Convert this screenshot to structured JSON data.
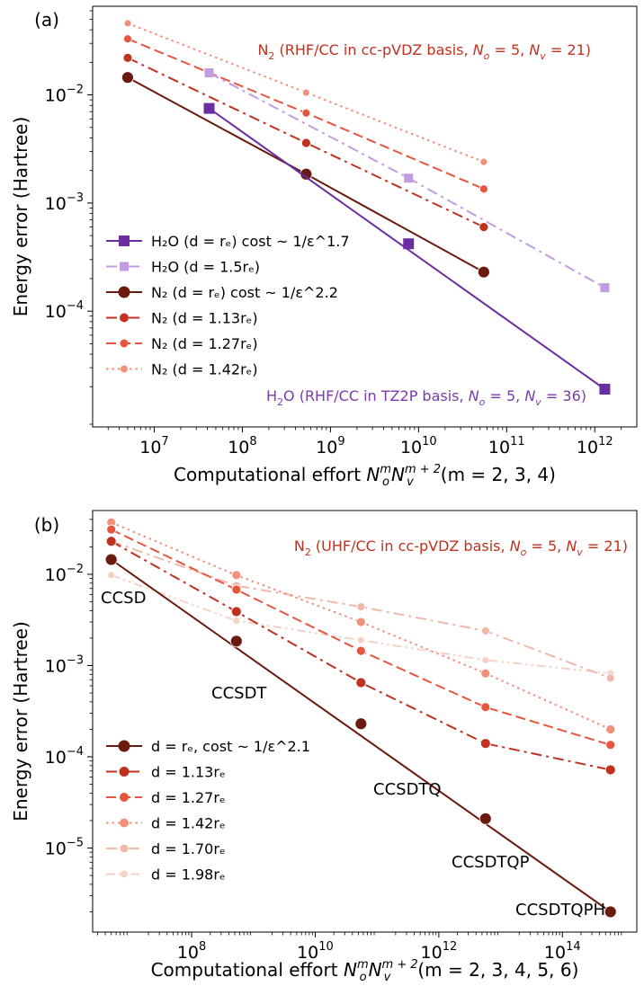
{
  "chart_data": [
    {
      "panel": "(a)",
      "type": "line",
      "xscale": "log",
      "yscale": "log",
      "xlim": [
        2000000,
        3000000000000
      ],
      "ylim": [
        8.5e-06,
        0.066
      ],
      "xticks": [
        {
          "v": 10000000,
          "b": "10",
          "e": "7"
        },
        {
          "v": 100000000,
          "b": "10",
          "e": "8"
        },
        {
          "v": 1000000000,
          "b": "10",
          "e": "9"
        },
        {
          "v": 10000000000,
          "b": "10",
          "e": "10"
        },
        {
          "v": 100000000000,
          "b": "10",
          "e": "11"
        },
        {
          "v": 1000000000000,
          "b": "10",
          "e": "12"
        }
      ],
      "yticks": [
        {
          "v": 0.0001,
          "b": "10",
          "e": "−4"
        },
        {
          "v": 0.001,
          "b": "10",
          "e": "−3"
        },
        {
          "v": 0.01,
          "b": "10",
          "e": "−2"
        }
      ],
      "xlabel": {
        "main": "Computational effort ",
        "sym1": "N",
        "sub1": "o",
        "sup1": "m",
        "sym2": "N",
        "sub2": "v",
        "sup2": "m + 2",
        "tail": "(m = 2, 3, 4)"
      },
      "ylabel": "Energy error (Hartree)",
      "annotations": [
        {
          "id": "n2-basis",
          "color": "#c0311f",
          "parts": [
            "N",
            "2",
            " (RHF/CC in cc-pVDZ basis, ",
            "N",
            "o",
            " = 5, ",
            "N",
            "v",
            " = 21)"
          ]
        },
        {
          "id": "h2o-basis",
          "color": "#7b3aaa",
          "parts": [
            "H",
            "2",
            "O (RHF/CC in TZ2P basis, ",
            "N",
            "o",
            " = 5, ",
            "N",
            "v",
            " = 36)"
          ]
        }
      ],
      "legend_position": "lower-left",
      "series": [
        {
          "name": "H₂O (d = rₑ) cost ~ 1/ε^1.7",
          "color": "#6a2ea0",
          "dash": "solid",
          "marker": "square",
          "ms": 12,
          "x": [
            42000000,
            7700000000,
            1300000000000
          ],
          "y": [
            0.0075,
            0.00042,
            1.9e-05
          ],
          "fit": {
            "x": [
              42000000,
              1300000000000
            ],
            "y": [
              0.0075,
              1.9e-05
            ]
          }
        },
        {
          "name": "H₂O (d = 1.5rₑ)",
          "color": "#c39be0",
          "dash": "dashdot",
          "marker": "square",
          "ms": 10,
          "x": [
            42000000,
            7700000000,
            1300000000000
          ],
          "y": [
            0.016,
            0.0017,
            0.000165
          ]
        },
        {
          "name": "N₂ (d = rₑ) cost ~ 1/ε^2.2",
          "color": "#6b1a10",
          "dash": "solid",
          "marker": "circle",
          "ms": 13,
          "x": [
            5000000,
            530000000,
            55000000000
          ],
          "y": [
            0.0145,
            0.00185,
            0.00023
          ]
        },
        {
          "name": "N₂ (d = 1.13rₑ)",
          "color": "#c0311f",
          "dash": "dashdot",
          "marker": "circle",
          "ms": 10,
          "x": [
            5000000,
            530000000,
            55000000000
          ],
          "y": [
            0.022,
            0.0036,
            0.0006
          ]
        },
        {
          "name": "N₂ (d = 1.27rₑ)",
          "color": "#e8553e",
          "dash": "dashed",
          "marker": "circle",
          "ms": 9,
          "x": [
            5000000,
            530000000,
            55000000000
          ],
          "y": [
            0.033,
            0.0068,
            0.00135
          ]
        },
        {
          "name": "N₂ (d = 1.42rₑ)",
          "color": "#f2907a",
          "dash": "dotted",
          "marker": "circle",
          "ms": 8,
          "x": [
            5000000,
            530000000,
            55000000000
          ],
          "y": [
            0.046,
            0.0105,
            0.0024
          ]
        }
      ]
    },
    {
      "panel": "(b)",
      "type": "line",
      "xscale": "log",
      "yscale": "log",
      "xlim": [
        2500000,
        1600000000000000
      ],
      "ylim": [
        1.2e-06,
        0.05
      ],
      "xticks": [
        {
          "v": 100000000,
          "b": "10",
          "e": "8"
        },
        {
          "v": 10000000000,
          "b": "10",
          "e": "10"
        },
        {
          "v": 1000000000000,
          "b": "10",
          "e": "12"
        },
        {
          "v": 100000000000000,
          "b": "10",
          "e": "14"
        }
      ],
      "yticks": [
        {
          "v": 1e-05,
          "b": "10",
          "e": "−5"
        },
        {
          "v": 0.0001,
          "b": "10",
          "e": "−4"
        },
        {
          "v": 0.001,
          "b": "10",
          "e": "−3"
        },
        {
          "v": 0.01,
          "b": "10",
          "e": "−2"
        }
      ],
      "xlabel": {
        "main": "Computational effort ",
        "sym1": "N",
        "sub1": "o",
        "sup1": "m",
        "sym2": "N",
        "sub2": "v",
        "sup2": "m + 2",
        "tail": "(m = 2, 3, 4, 5, 6)"
      },
      "ylabel": "Energy error (Hartree)",
      "annotations": [
        {
          "id": "n2-uhf-basis",
          "color": "#c0311f",
          "parts": [
            "N",
            "2",
            " (UHF/CC in cc-pVDZ basis, ",
            "N",
            "o",
            " = 5, ",
            "N",
            "v",
            " = 21)"
          ]
        }
      ],
      "method_labels": [
        "CCSD",
        "CCSDT",
        "CCSDTQ",
        "CCSDTQP",
        "CCSDTQPH"
      ],
      "legend_position": "lower-left",
      "series": [
        {
          "name": "d = rₑ, cost ~ 1/ε^2.1",
          "color": "#6b1a10",
          "dash": "solid",
          "marker": "circle",
          "ms": 13,
          "x": [
            5000000,
            530000000,
            55000000000,
            5700000000000,
            600000000000000
          ],
          "y": [
            0.0145,
            0.00185,
            0.00023,
            2.1e-05,
            2e-06
          ],
          "fit": {
            "x": [
              5000000,
              600000000000000
            ],
            "y": [
              0.0145,
              2e-06
            ]
          }
        },
        {
          "name": "d = 1.13rₑ",
          "color": "#c0311f",
          "dash": "dashdot",
          "marker": "circle",
          "ms": 11,
          "x": [
            5000000,
            530000000,
            55000000000,
            5700000000000,
            600000000000000
          ],
          "y": [
            0.023,
            0.0039,
            0.00065,
            0.00014,
            7.2e-05
          ]
        },
        {
          "name": "d = 1.27rₑ",
          "color": "#e8553e",
          "dash": "dashed",
          "marker": "circle",
          "ms": 10,
          "x": [
            5000000,
            530000000,
            55000000000,
            5700000000000,
            600000000000000
          ],
          "y": [
            0.031,
            0.0068,
            0.00145,
            0.00035,
            0.000135
          ]
        },
        {
          "name": "d = 1.42rₑ",
          "color": "#f2907a",
          "dash": "dotted",
          "marker": "circle",
          "ms": 10,
          "x": [
            5000000,
            530000000,
            55000000000,
            5700000000000,
            600000000000000
          ],
          "y": [
            0.037,
            0.0098,
            0.003,
            0.00082,
            0.0002
          ]
        },
        {
          "name": "d = 1.70rₑ",
          "color": "#f0b8a8",
          "dash": "dashdot",
          "marker": "circle",
          "ms": 9,
          "x": [
            5000000,
            530000000,
            55000000000,
            5700000000000,
            600000000000000
          ],
          "y": [
            0.023,
            0.0075,
            0.0044,
            0.0024,
            0.00073
          ]
        },
        {
          "name": "d = 1.98rₑ",
          "color": "#f6d2c6",
          "dash": "dashdotdot",
          "marker": "circle",
          "ms": 8,
          "x": [
            5000000,
            530000000,
            55000000000,
            5700000000000,
            600000000000000
          ],
          "y": [
            0.0098,
            0.0031,
            0.0019,
            0.00115,
            0.00082
          ]
        }
      ]
    }
  ]
}
